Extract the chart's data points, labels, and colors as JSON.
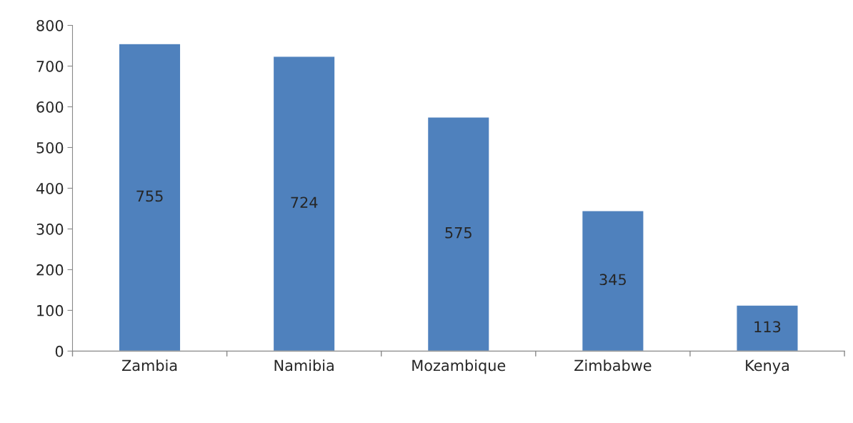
{
  "chart_data": {
    "type": "bar",
    "categories": [
      "Zambia",
      "Namibia",
      "Mozambique",
      "Zimbabwe",
      "Kenya"
    ],
    "values": [
      755,
      724,
      575,
      345,
      113
    ],
    "color": "#4f81bd",
    "ylim": [
      0,
      800
    ],
    "yticks": [
      0,
      100,
      200,
      300,
      400,
      500,
      600,
      700,
      800
    ],
    "grid": false,
    "data_labels": true
  }
}
